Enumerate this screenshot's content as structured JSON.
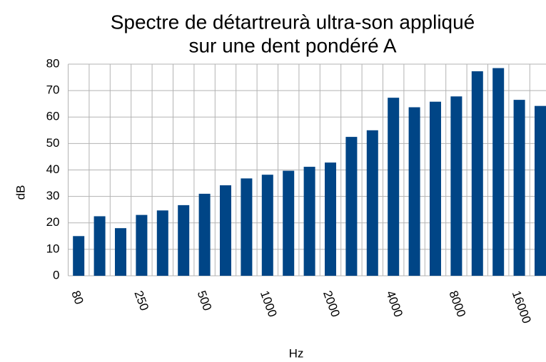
{
  "chart_data": {
    "type": "bar",
    "title": [
      "Spectre de détartreurà ultra-son appliqué",
      "sur une dent pondéré A"
    ],
    "xlabel": "Hz",
    "ylabel": "dB",
    "categories": [
      "80",
      null,
      null,
      "250",
      null,
      null,
      "500",
      null,
      null,
      "1000",
      null,
      null,
      "2000",
      null,
      null,
      "4000",
      null,
      null,
      "8000",
      null,
      null,
      "16000",
      null
    ],
    "values": [
      15,
      22.5,
      18,
      23,
      24.7,
      26.7,
      31,
      34.2,
      36.8,
      38.2,
      39.7,
      41.2,
      42.8,
      52.5,
      55,
      67.3,
      63.7,
      65.8,
      67.8,
      77.3,
      78.5,
      66.5,
      64.2
    ],
    "color": "#004586",
    "ylim": [
      0,
      80
    ],
    "yticks": [
      0,
      10,
      20,
      30,
      40,
      50,
      60,
      70,
      80
    ],
    "grid": true
  }
}
